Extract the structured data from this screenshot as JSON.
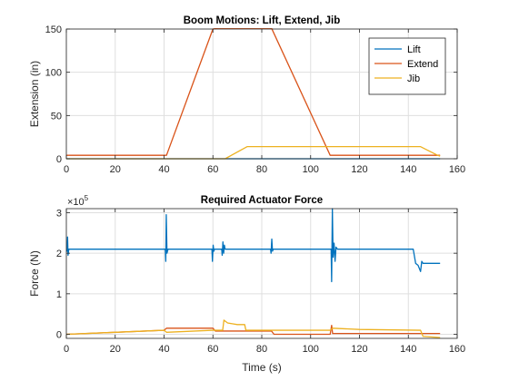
{
  "chart_data": [
    {
      "type": "line",
      "title": "Boom Motions: Lift, Extend, Jib",
      "xlabel": "",
      "ylabel": "Extension (in)",
      "xlim": [
        0,
        160
      ],
      "ylim": [
        0,
        150
      ],
      "xticks": [
        0,
        20,
        40,
        60,
        80,
        100,
        120,
        140,
        160
      ],
      "yticks": [
        0,
        50,
        100,
        150
      ],
      "grid": true,
      "legend_location": "top-right",
      "series": [
        {
          "name": "Lift",
          "color": "#0072BD",
          "points": [
            [
              0,
              0
            ],
            [
              153,
              0
            ]
          ]
        },
        {
          "name": "Extend",
          "color": "#D95319",
          "points": [
            [
              0,
              4
            ],
            [
              41,
              4
            ],
            [
              60,
              150
            ],
            [
              62,
              151
            ],
            [
              84,
              151
            ],
            [
              108,
              4
            ],
            [
              153,
              4
            ]
          ]
        },
        {
          "name": "Jib",
          "color": "#EDB120",
          "points": [
            [
              0,
              0
            ],
            [
              65,
              0
            ],
            [
              74,
              14
            ],
            [
              145,
              14
            ],
            [
              152,
              4
            ],
            [
              153,
              3
            ]
          ]
        }
      ]
    },
    {
      "type": "line",
      "title": "Required Actuator Force",
      "xlabel": "Time (s)",
      "ylabel": "Force (N)",
      "y_exponent_label": "×10",
      "y_exponent": "5",
      "xlim": [
        0,
        160
      ],
      "ylim": [
        -10000,
        310000
      ],
      "xticks": [
        0,
        20,
        40,
        60,
        80,
        100,
        120,
        140,
        160
      ],
      "yticks": [
        0,
        100000,
        200000,
        300000
      ],
      "ytick_labels": [
        "0",
        "1",
        "2",
        "3"
      ],
      "grid": true,
      "series": [
        {
          "color": "#0072BD",
          "points": [
            [
              0,
              210000
            ],
            [
              0.3,
              205000
            ],
            [
              0.5,
              240000
            ],
            [
              0.7,
              195000
            ],
            [
              1,
              210000
            ],
            [
              40.5,
              210000
            ],
            [
              40.7,
              180000
            ],
            [
              40.9,
              295000
            ],
            [
              41.2,
              200000
            ],
            [
              41.6,
              210000
            ],
            [
              59.6,
              210000
            ],
            [
              59.8,
              180000
            ],
            [
              60.1,
              220000
            ],
            [
              60.4,
              205000
            ],
            [
              60.6,
              210000
            ],
            [
              63.6,
              210000
            ],
            [
              63.8,
              195000
            ],
            [
              64.1,
              228000
            ],
            [
              64.4,
              200000
            ],
            [
              64.7,
              220000
            ],
            [
              65,
              210000
            ],
            [
              83.6,
              210000
            ],
            [
              83.8,
              200000
            ],
            [
              84.1,
              235000
            ],
            [
              84.4,
              205000
            ],
            [
              84.7,
              210000
            ],
            [
              108.4,
              210000
            ],
            [
              108.6,
              130000
            ],
            [
              108.9,
              310000
            ],
            [
              109.2,
              190000
            ],
            [
              109.6,
              225000
            ],
            [
              110,
              180000
            ],
            [
              110.4,
              215000
            ],
            [
              111,
              210000
            ],
            [
              142,
              210000
            ],
            [
              143,
              175000
            ],
            [
              144,
              170000
            ],
            [
              145,
              155000
            ],
            [
              145.5,
              180000
            ],
            [
              146,
              175000
            ],
            [
              153,
              175000
            ]
          ]
        },
        {
          "color": "#D95319",
          "points": [
            [
              0,
              0
            ],
            [
              20,
              5000
            ],
            [
              40,
              10000
            ],
            [
              41,
              15000
            ],
            [
              60,
              15000
            ],
            [
              61,
              8000
            ],
            [
              84,
              8000
            ],
            [
              85,
              0
            ],
            [
              108,
              0
            ],
            [
              108.6,
              22000
            ],
            [
              109,
              2000
            ],
            [
              130,
              2000
            ],
            [
              153,
              2000
            ]
          ]
        },
        {
          "color": "#EDB120",
          "points": [
            [
              0,
              0
            ],
            [
              20,
              5000
            ],
            [
              40,
              10000
            ],
            [
              41,
              5000
            ],
            [
              60,
              10000
            ],
            [
              61,
              10000
            ],
            [
              64,
              10000
            ],
            [
              64.5,
              35000
            ],
            [
              66,
              28000
            ],
            [
              70,
              24000
            ],
            [
              73,
              24000
            ],
            [
              73.5,
              10000
            ],
            [
              108,
              10000
            ],
            [
              109,
              15000
            ],
            [
              120,
              12000
            ],
            [
              145,
              10000
            ],
            [
              146,
              -5000
            ],
            [
              153,
              -8000
            ]
          ]
        }
      ]
    }
  ]
}
